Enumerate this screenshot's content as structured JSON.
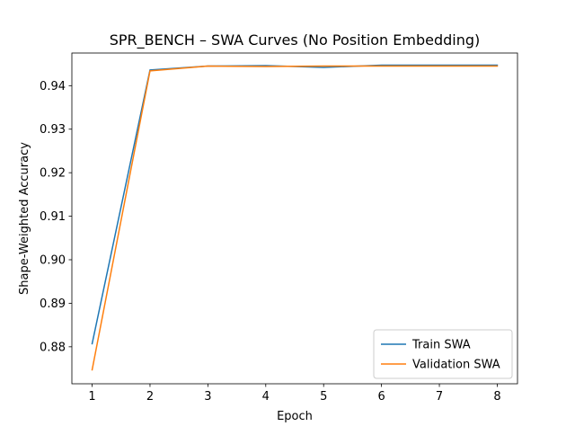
{
  "chart_data": {
    "type": "line",
    "title": "SPR_BENCH – SWA Curves (No Position Embedding)",
    "xlabel": "Epoch",
    "ylabel": "Shape-Weighted Accuracy",
    "x": [
      1,
      2,
      3,
      4,
      5,
      6,
      7,
      8
    ],
    "xticks": [
      "1",
      "2",
      "3",
      "4",
      "5",
      "6",
      "7",
      "8"
    ],
    "xlim": [
      0.65,
      8.35
    ],
    "yticks": [
      "0.88",
      "0.89",
      "0.90",
      "0.91",
      "0.92",
      "0.93",
      "0.94"
    ],
    "ytick_values": [
      0.88,
      0.89,
      0.9,
      0.91,
      0.92,
      0.93,
      0.94
    ],
    "ylim": [
      0.8715,
      0.9475
    ],
    "grid": false,
    "legend_position": "lower-right",
    "series": [
      {
        "name": "Train SWA",
        "color": "#1f77b4",
        "values": [
          0.8807,
          0.9436,
          0.9445,
          0.9446,
          0.9442,
          0.9447,
          0.9447,
          0.9447
        ]
      },
      {
        "name": "Validation SWA",
        "color": "#ff7f0e",
        "values": [
          0.8747,
          0.9434,
          0.9445,
          0.9444,
          0.9445,
          0.9445,
          0.9445,
          0.9445
        ]
      }
    ]
  }
}
